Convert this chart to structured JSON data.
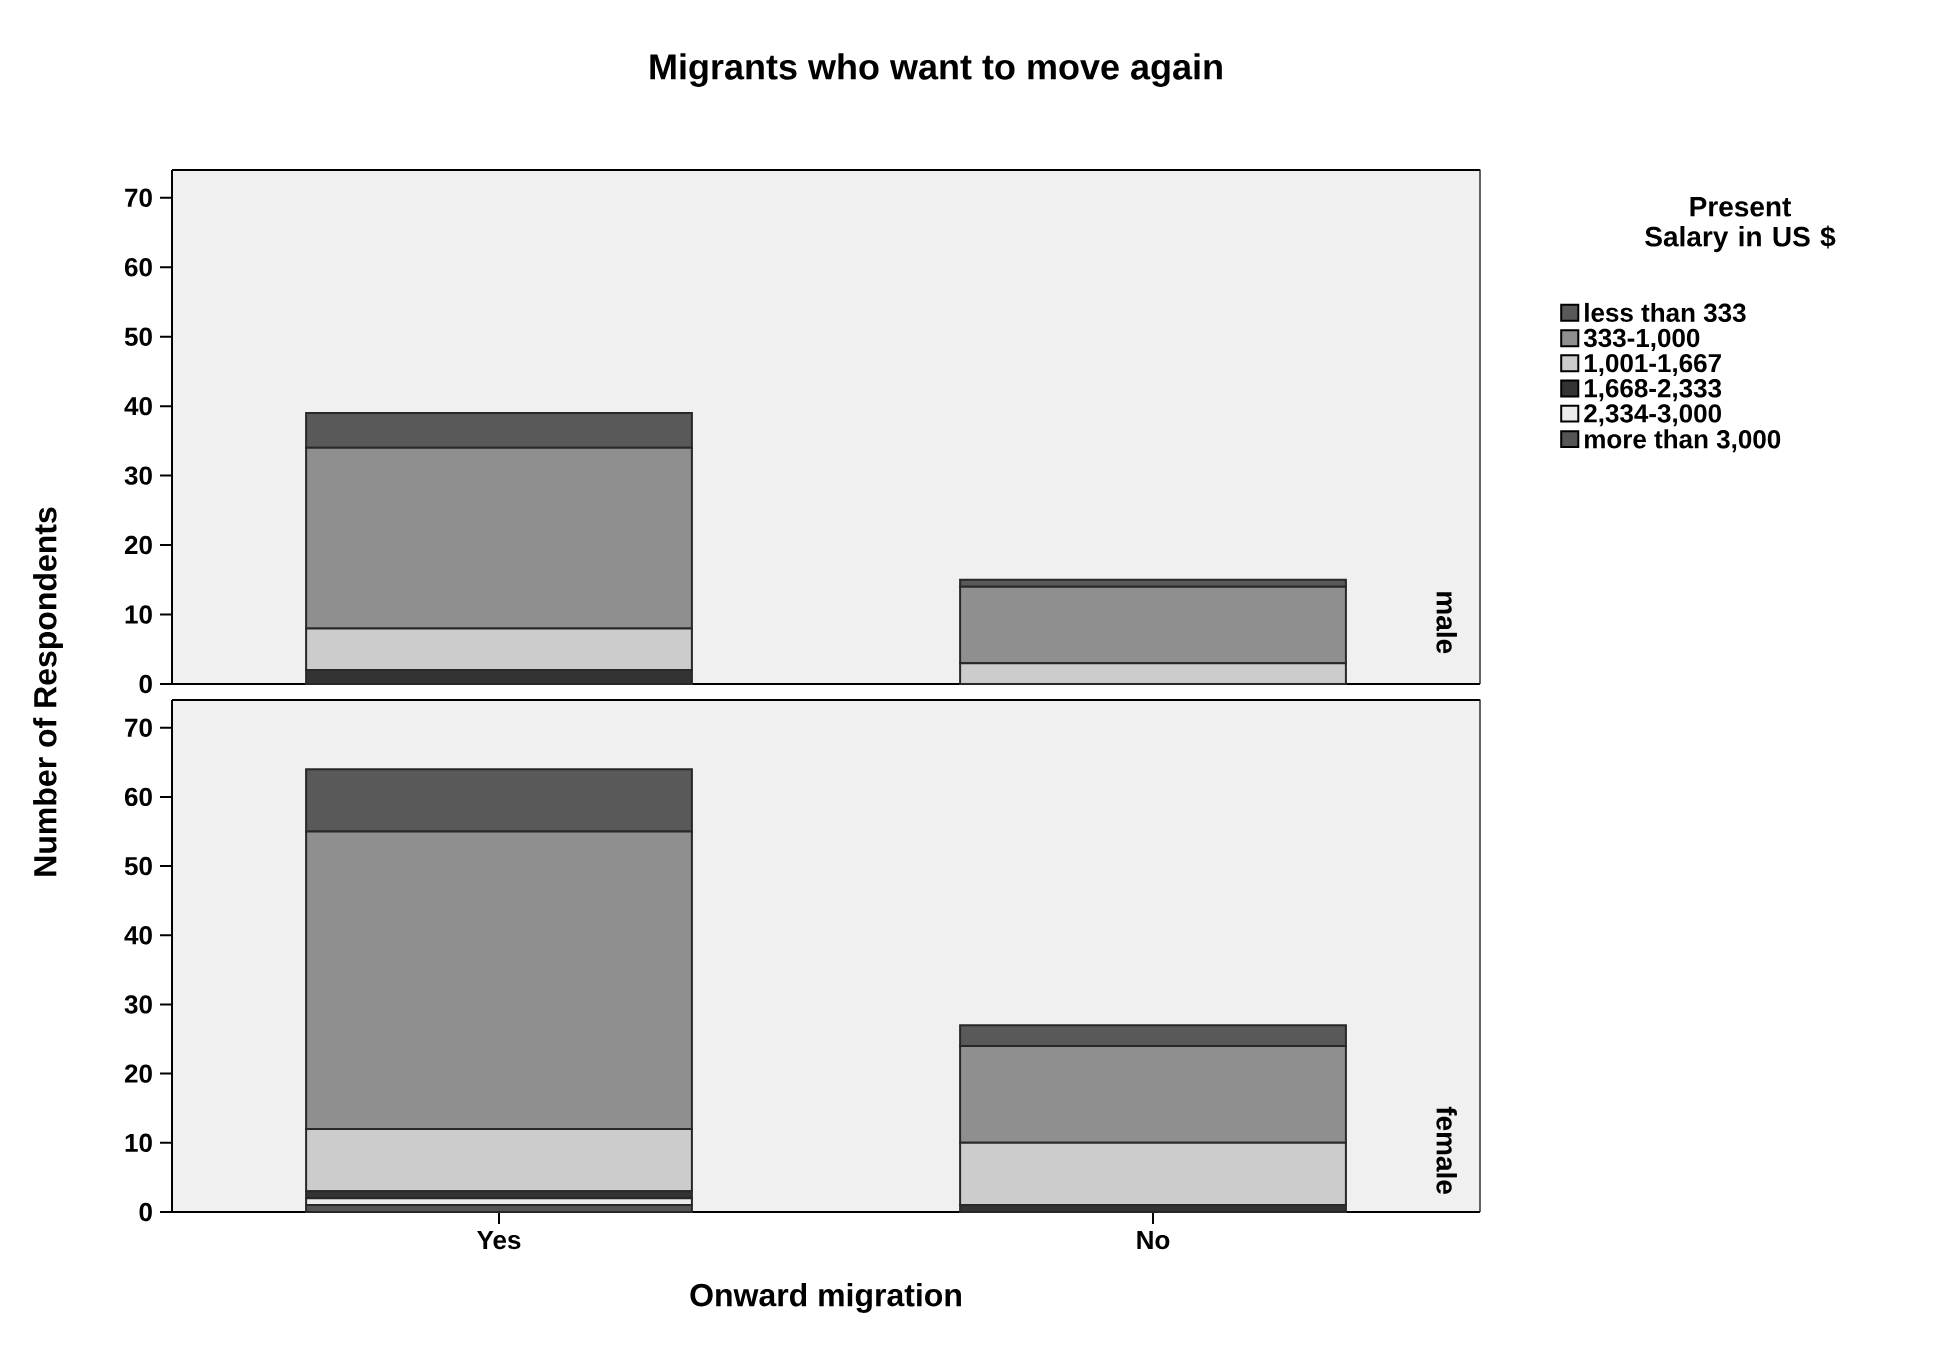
{
  "chart_data": [
    {
      "type": "bar",
      "title": "Migrants who want to move again",
      "ylabel": "Number of Respondents",
      "y2label": "male",
      "legend_title": "Present Salary in US $",
      "legend": "right",
      "stacked": true,
      "tick_labels": "y",
      "categories": [
        null,
        null
      ],
      "ylim": [
        0,
        74
      ],
      "yticks": [
        0,
        10,
        20,
        30,
        40,
        50,
        60,
        70
      ],
      "series": [
        {
          "name": "more than 3,000",
          "color": "#555555",
          "values": [
            0,
            0
          ]
        },
        {
          "name": "2,334-3,000",
          "color": "#ececec",
          "values": [
            0,
            0
          ]
        },
        {
          "name": "1,668-2,333",
          "color": "#333333",
          "values": [
            2,
            0
          ]
        },
        {
          "name": "1,001-1,667",
          "color": "#cccccc",
          "values": [
            6,
            3
          ]
        },
        {
          "name": "333-1,000",
          "color": "#8f8f8f",
          "values": [
            26,
            11
          ]
        },
        {
          "name": "less than 333",
          "color": "#595959",
          "values": [
            5,
            1
          ]
        }
      ]
    },
    {
      "type": "bar",
      "xlabel": "Onward migration",
      "y2label": "female",
      "stacked": true,
      "categories": [
        "Yes",
        "No"
      ],
      "ylim": [
        0,
        74
      ],
      "yticks": [
        0,
        10,
        20,
        30,
        40,
        50,
        60,
        70
      ],
      "series": [
        {
          "color": "#555555",
          "values": [
            1,
            0
          ]
        },
        {
          "color": "#ececec",
          "values": [
            1,
            0
          ]
        },
        {
          "color": "#333333",
          "values": [
            1,
            1
          ]
        },
        {
          "color": "#cccccc",
          "values": [
            9,
            9
          ]
        },
        {
          "color": "#8f8f8f",
          "values": [
            43,
            14
          ]
        },
        {
          "color": "#595959",
          "values": [
            9,
            3
          ]
        }
      ]
    }
  ]
}
